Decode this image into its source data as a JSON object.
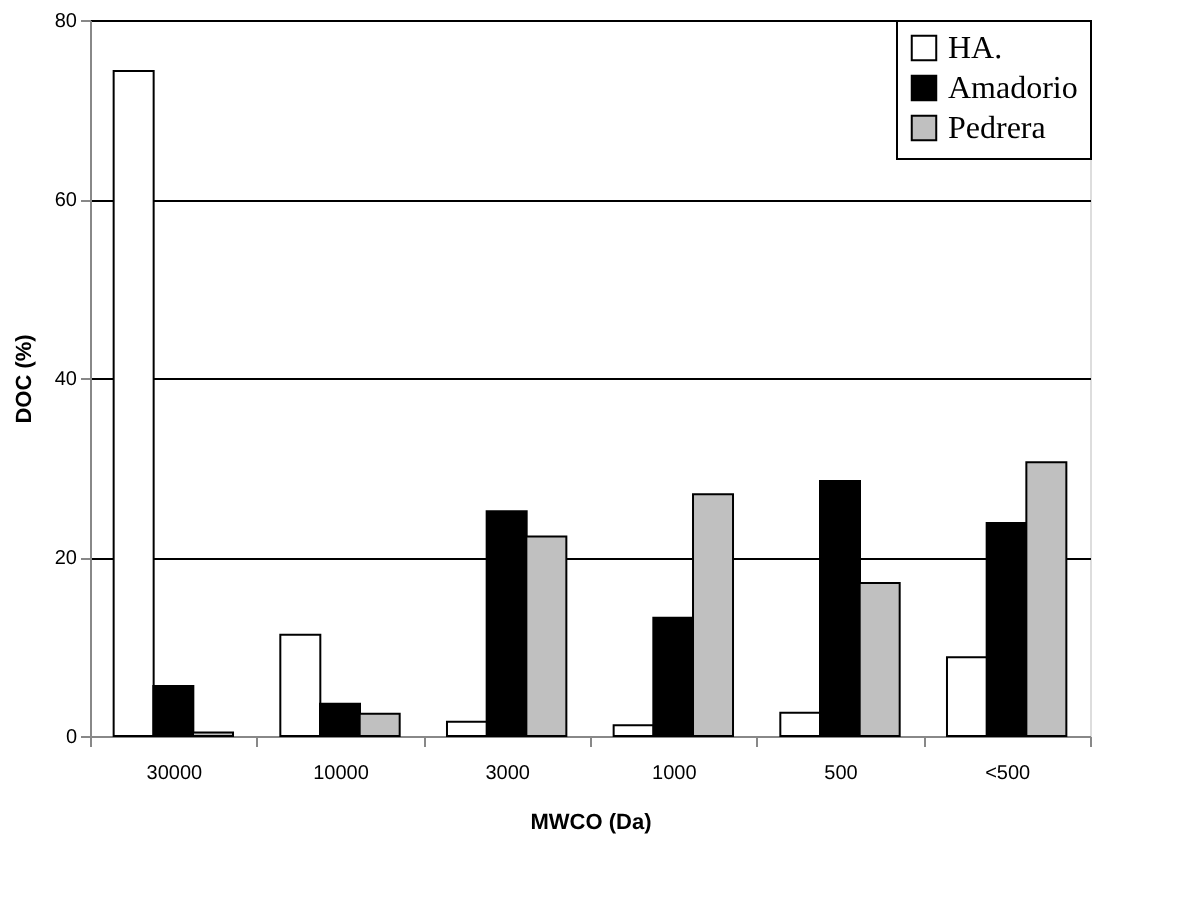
{
  "chart_data": {
    "type": "bar",
    "xlabel": "MWCO (Da)",
    "ylabel": "DOC (%)",
    "categories": [
      "30000",
      "10000",
      "3000",
      "1000",
      "500",
      "<500"
    ],
    "series": [
      {
        "name": "HA.",
        "color": "#ffffff",
        "values": [
          74.3,
          11.3,
          1.6,
          1.2,
          2.6,
          8.8
        ]
      },
      {
        "name": "Amadorio",
        "color": "#000000",
        "values": [
          5.6,
          3.6,
          25.1,
          13.2,
          28.5,
          23.8
        ]
      },
      {
        "name": "Pedrera",
        "color": "#c0c0c0",
        "values": [
          0.4,
          2.5,
          22.3,
          27.0,
          17.1,
          30.6
        ]
      }
    ],
    "ylim": [
      0,
      80
    ],
    "yticks": [
      0,
      20,
      40,
      60,
      80
    ],
    "grid": "y",
    "legend": "top right"
  }
}
